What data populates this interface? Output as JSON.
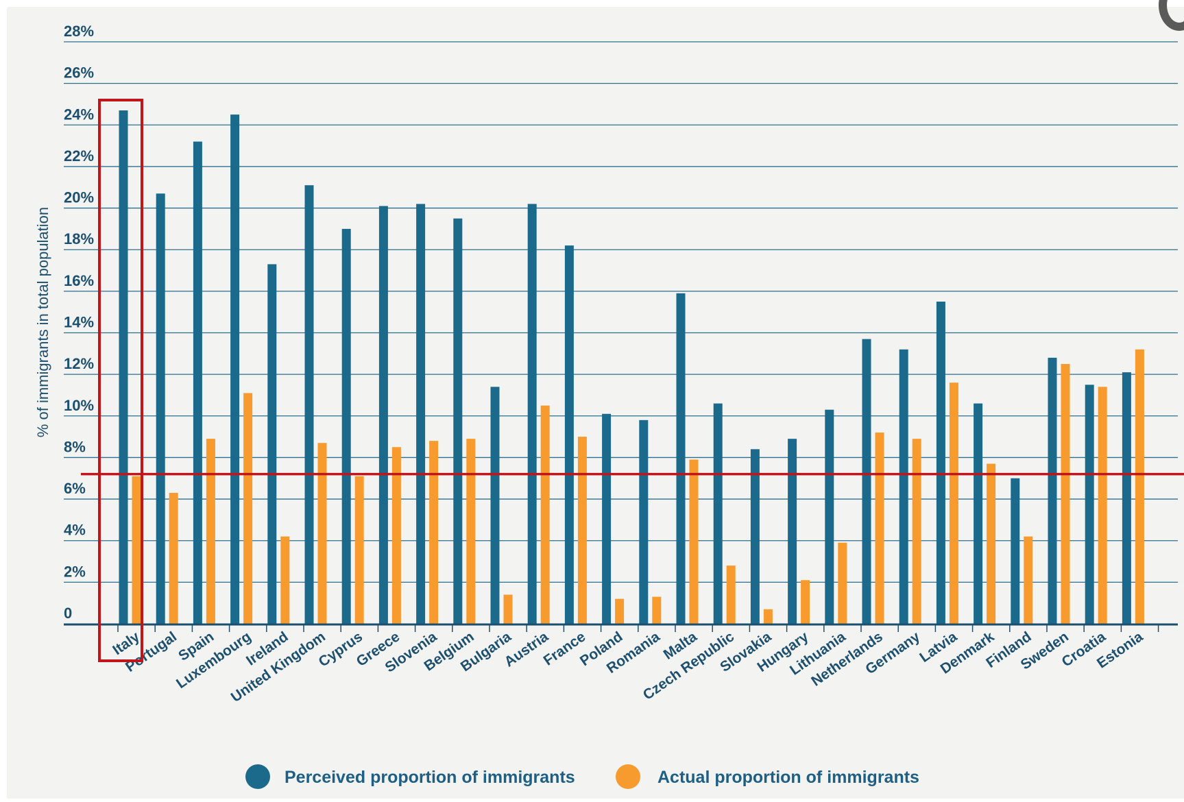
{
  "chart_data": {
    "type": "bar",
    "ylabel": "% of immigrants in total population",
    "ylim": [
      0,
      28
    ],
    "yticks": [
      {
        "value": 0,
        "label": "0"
      },
      {
        "value": 2,
        "label": "2%"
      },
      {
        "value": 4,
        "label": "4%"
      },
      {
        "value": 6,
        "label": "6%"
      },
      {
        "value": 8,
        "label": "8%"
      },
      {
        "value": 10,
        "label": "10%"
      },
      {
        "value": 12,
        "label": "12%"
      },
      {
        "value": 14,
        "label": "14%"
      },
      {
        "value": 16,
        "label": "16%"
      },
      {
        "value": 18,
        "label": "18%"
      },
      {
        "value": 20,
        "label": "20%"
      },
      {
        "value": 22,
        "label": "22%"
      },
      {
        "value": 24,
        "label": "24%"
      },
      {
        "value": 26,
        "label": "26%"
      },
      {
        "value": 28,
        "label": "28%"
      }
    ],
    "grid": true,
    "legend_position": "bottom",
    "categories": [
      "Italy",
      "Portugal",
      "Spain",
      "Luxembourg",
      "Ireland",
      "United Kingdom",
      "Cyprus",
      "Greece",
      "Slovenia",
      "Belgium",
      "Bulgaria",
      "Austria",
      "France",
      "Poland",
      "Romania",
      "Malta",
      "Czech Republic",
      "Slovakia",
      "Hungary",
      "Lithuania",
      "Netherlands",
      "Germany",
      "Latvia",
      "Denmark",
      "Finland",
      "Sweden",
      "Croatia",
      "Estonia"
    ],
    "series": [
      {
        "name": "Perceived proportion of immigrants",
        "color": "#1b6a8c",
        "values": [
          24.7,
          20.7,
          23.2,
          24.5,
          17.3,
          21.1,
          19.0,
          20.1,
          20.2,
          19.5,
          11.4,
          20.2,
          18.2,
          10.1,
          9.8,
          15.9,
          10.6,
          8.4,
          8.9,
          10.3,
          13.7,
          13.2,
          15.5,
          10.6,
          7.0,
          12.8,
          11.5,
          12.1
        ]
      },
      {
        "name": "Actual proportion of immigrants",
        "color": "#f79b2e",
        "values": [
          7.1,
          6.3,
          8.9,
          11.1,
          4.2,
          8.7,
          7.1,
          8.5,
          8.8,
          8.9,
          1.4,
          10.5,
          9.0,
          1.2,
          1.3,
          7.9,
          2.8,
          0.7,
          2.1,
          3.9,
          9.2,
          8.9,
          11.6,
          7.7,
          4.2,
          12.5,
          11.4,
          13.2
        ]
      }
    ],
    "annotations": [
      {
        "type": "hline",
        "value": 7.2,
        "color": "#c0161b"
      },
      {
        "type": "highlight-box",
        "category": "Italy",
        "color": "#c0161b"
      }
    ]
  },
  "legend": {
    "perceived": "Perceived proportion of immigrants",
    "actual": "Actual proportion of immigrants"
  },
  "colors": {
    "axis_text": "#1d4f6e",
    "grid": "#2d6e8e",
    "annotation": "#c0161b"
  }
}
